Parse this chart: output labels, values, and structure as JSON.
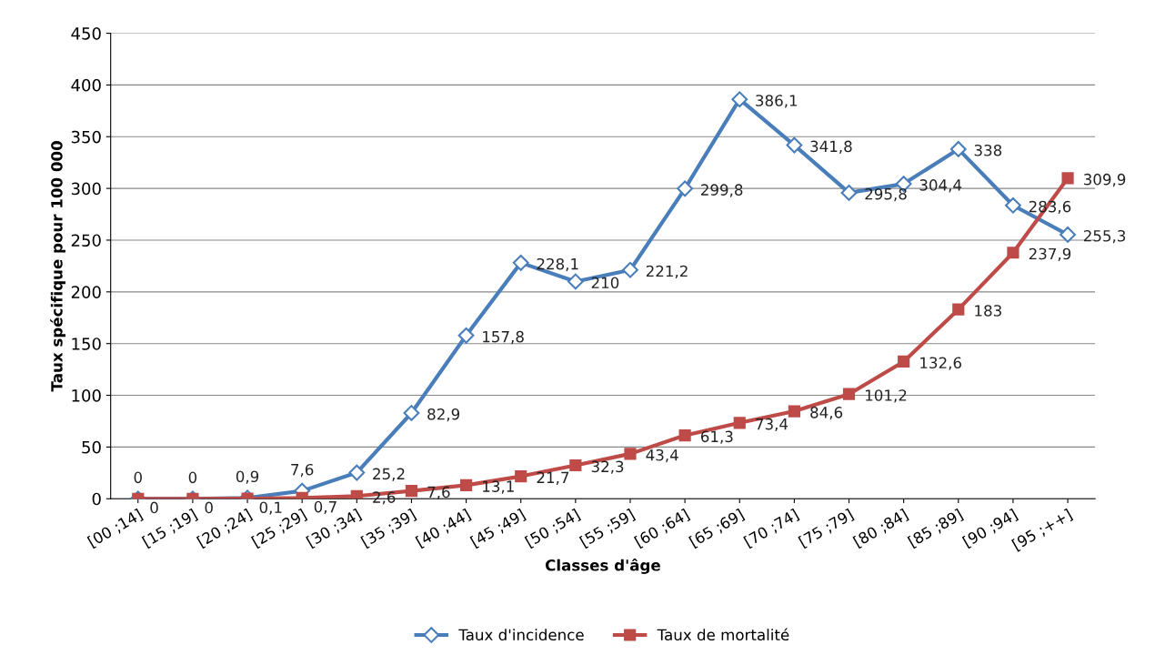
{
  "chart_data": {
    "type": "line",
    "xlabel": "Classes d'âge",
    "ylabel": "Taux spécifique pour 100 000",
    "categories": [
      "[00 ;14]",
      "[15 ;19]",
      "[20 ;24]",
      "[25 ;29]",
      "[30 ;34]",
      "[35 ;39]",
      "[40 ;44]",
      "[45 ;49]",
      "[50 ;54]",
      "[55 ;59]",
      "[60 ;64]",
      "[65 ;69]",
      "[70 ;74]",
      "[75 ;79]",
      "[80 ;84]",
      "[85 ;89]",
      "[90 ;94]",
      "[95 ;++]"
    ],
    "series": [
      {
        "name": "Taux d'incidence",
        "color": "#4a7ebb",
        "marker": "diamond",
        "values": [
          0,
          0,
          0.9,
          7.6,
          25.2,
          82.9,
          157.8,
          228.1,
          210,
          221.2,
          299.8,
          386.1,
          341.8,
          295.8,
          304.4,
          338,
          283.6,
          255.3
        ],
        "value_labels": [
          "0",
          "0",
          "0,9",
          "7,6",
          "25,2",
          "82,9",
          "157,8",
          "228,1",
          "210",
          "221,2",
          "299,8",
          "386,1",
          "341,8",
          "295,8",
          "304,4",
          "338",
          "283,6",
          "255,3"
        ]
      },
      {
        "name": "Taux de mortalité",
        "color": "#be4b48",
        "marker": "square",
        "values": [
          0,
          0,
          0.1,
          0.7,
          2.6,
          7.6,
          13.1,
          21.7,
          32.3,
          43.4,
          61.3,
          73.4,
          84.6,
          101.2,
          132.6,
          183,
          237.9,
          309.9
        ],
        "value_labels": [
          "0",
          "0",
          "0,1",
          "0,7",
          "2,6",
          "7,6",
          "13,1",
          "21,7",
          "32,3",
          "43,4",
          "61,3",
          "73,4",
          "84,6",
          "101,2",
          "132,6",
          "183",
          "237,9",
          "309,9"
        ]
      }
    ],
    "ylim": [
      0,
      450
    ],
    "yticks": [
      0,
      50,
      100,
      150,
      200,
      250,
      300,
      350,
      400,
      450
    ],
    "grid": "y",
    "legend": "bottom"
  }
}
